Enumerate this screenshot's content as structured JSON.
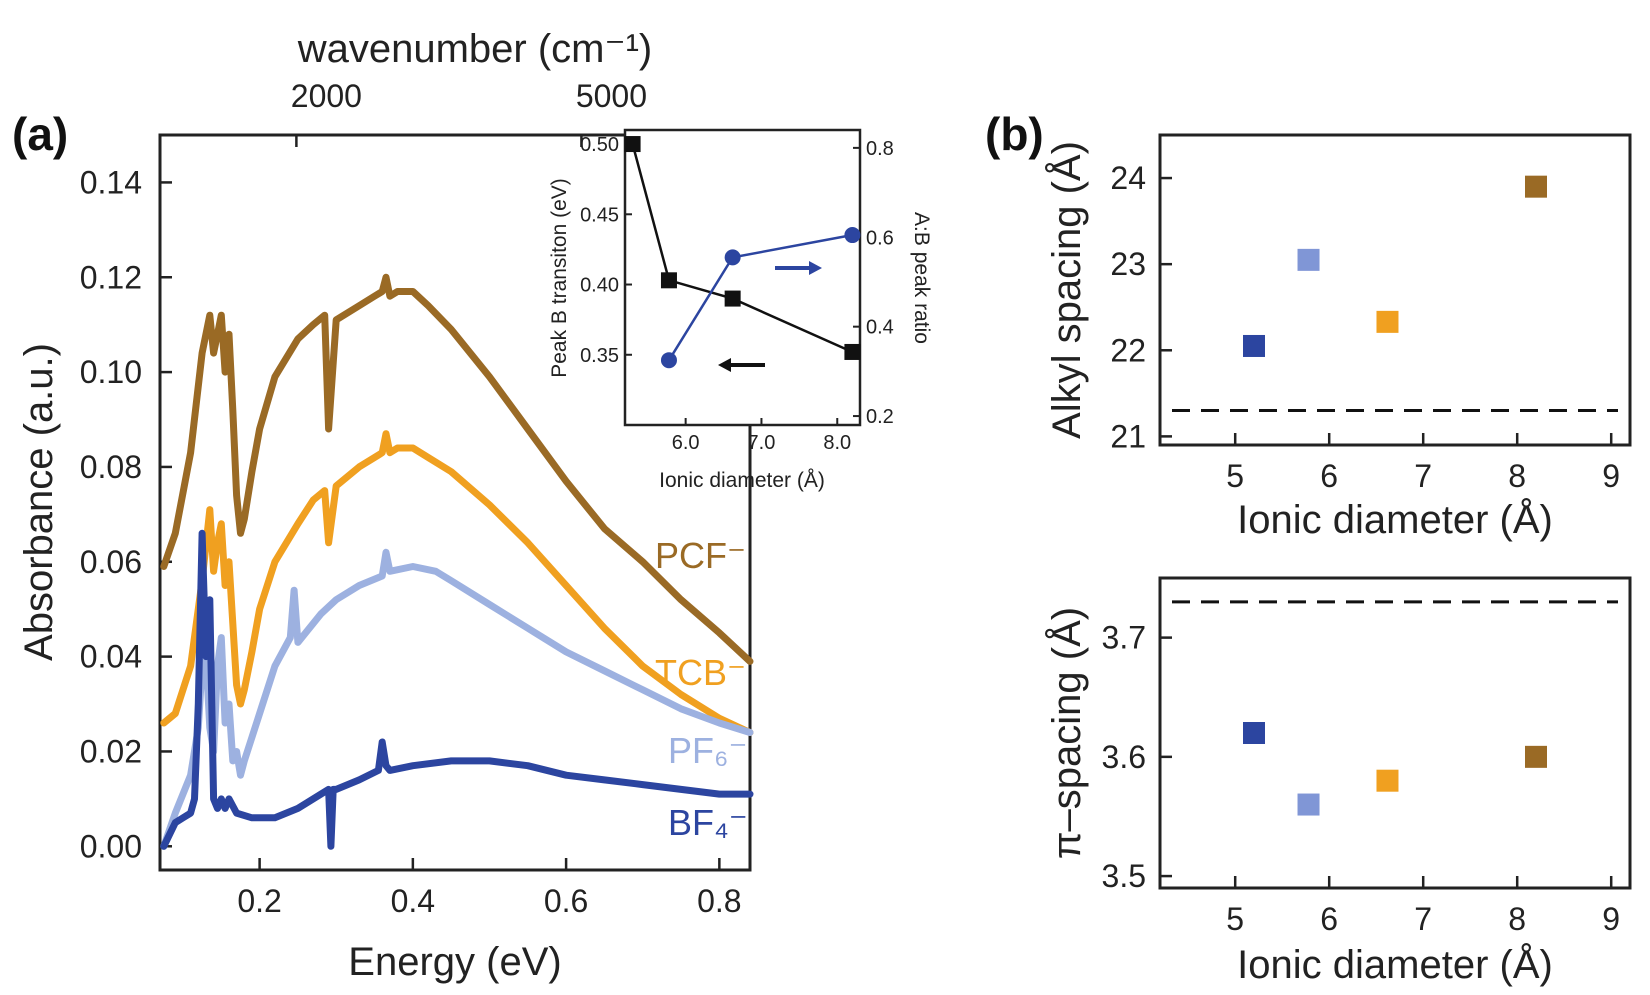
{
  "chart_data": [
    {
      "panel": "(a)",
      "type": "line",
      "xlabel": "Energy (eV)",
      "ylabel": "Absorbance (a.u.)",
      "top_axis_label": "wavenumber (cm⁻¹)",
      "top_ticks": [
        "2000",
        "5000"
      ],
      "top_tick_positions_ev": [
        0.248,
        0.62
      ],
      "xlim": [
        0.07,
        0.84
      ],
      "ylim": [
        -0.005,
        0.15
      ],
      "xticks": [
        "0.2",
        "0.4",
        "0.6",
        "0.8"
      ],
      "yticks": [
        "0.00",
        "0.02",
        "0.04",
        "0.06",
        "0.08",
        "0.10",
        "0.12",
        "0.14"
      ],
      "series": [
        {
          "name": "PCF⁻",
          "color": "#9a6a25",
          "x": [
            0.075,
            0.09,
            0.11,
            0.125,
            0.135,
            0.14,
            0.145,
            0.15,
            0.155,
            0.16,
            0.165,
            0.17,
            0.175,
            0.18,
            0.19,
            0.2,
            0.22,
            0.25,
            0.27,
            0.285,
            0.29,
            0.3,
            0.33,
            0.35,
            0.36,
            0.365,
            0.37,
            0.38,
            0.4,
            0.42,
            0.45,
            0.5,
            0.55,
            0.6,
            0.65,
            0.7,
            0.75,
            0.8,
            0.84
          ],
          "y": [
            0.059,
            0.066,
            0.083,
            0.104,
            0.112,
            0.104,
            0.108,
            0.112,
            0.1,
            0.108,
            0.092,
            0.074,
            0.066,
            0.069,
            0.079,
            0.088,
            0.099,
            0.107,
            0.11,
            0.112,
            0.088,
            0.111,
            0.114,
            0.116,
            0.117,
            0.12,
            0.116,
            0.117,
            0.117,
            0.114,
            0.109,
            0.099,
            0.088,
            0.077,
            0.067,
            0.06,
            0.052,
            0.045,
            0.039
          ]
        },
        {
          "name": "TCB⁻",
          "color": "#f0a020",
          "x": [
            0.075,
            0.09,
            0.11,
            0.125,
            0.135,
            0.14,
            0.145,
            0.15,
            0.155,
            0.16,
            0.165,
            0.17,
            0.175,
            0.18,
            0.19,
            0.2,
            0.22,
            0.25,
            0.27,
            0.285,
            0.29,
            0.3,
            0.33,
            0.35,
            0.36,
            0.365,
            0.37,
            0.38,
            0.4,
            0.42,
            0.45,
            0.5,
            0.55,
            0.6,
            0.65,
            0.7,
            0.75,
            0.8,
            0.84
          ],
          "y": [
            0.026,
            0.028,
            0.038,
            0.056,
            0.071,
            0.058,
            0.064,
            0.068,
            0.055,
            0.06,
            0.047,
            0.034,
            0.03,
            0.033,
            0.041,
            0.05,
            0.06,
            0.068,
            0.073,
            0.075,
            0.064,
            0.076,
            0.08,
            0.082,
            0.083,
            0.087,
            0.083,
            0.084,
            0.084,
            0.082,
            0.079,
            0.072,
            0.064,
            0.055,
            0.046,
            0.038,
            0.032,
            0.027,
            0.024
          ]
        },
        {
          "name": "PF₆⁻",
          "color": "#9db1e0",
          "x": [
            0.075,
            0.09,
            0.11,
            0.12,
            0.125,
            0.13,
            0.135,
            0.14,
            0.145,
            0.15,
            0.155,
            0.16,
            0.165,
            0.17,
            0.175,
            0.18,
            0.2,
            0.22,
            0.24,
            0.245,
            0.25,
            0.28,
            0.3,
            0.33,
            0.36,
            0.365,
            0.37,
            0.4,
            0.43,
            0.45,
            0.5,
            0.55,
            0.6,
            0.65,
            0.7,
            0.75,
            0.8,
            0.84
          ],
          "y": [
            0.0,
            0.007,
            0.015,
            0.025,
            0.038,
            0.04,
            0.025,
            0.02,
            0.038,
            0.044,
            0.026,
            0.03,
            0.018,
            0.02,
            0.015,
            0.018,
            0.028,
            0.038,
            0.044,
            0.054,
            0.043,
            0.049,
            0.052,
            0.055,
            0.057,
            0.062,
            0.058,
            0.059,
            0.058,
            0.056,
            0.051,
            0.046,
            0.041,
            0.037,
            0.033,
            0.029,
            0.026,
            0.024
          ]
        },
        {
          "name": "BF₄⁻",
          "color": "#2c45a0",
          "x": [
            0.075,
            0.09,
            0.1,
            0.11,
            0.115,
            0.12,
            0.125,
            0.13,
            0.135,
            0.14,
            0.145,
            0.15,
            0.155,
            0.16,
            0.17,
            0.19,
            0.22,
            0.25,
            0.28,
            0.29,
            0.293,
            0.296,
            0.3,
            0.33,
            0.355,
            0.36,
            0.365,
            0.37,
            0.4,
            0.45,
            0.5,
            0.55,
            0.6,
            0.65,
            0.7,
            0.75,
            0.8,
            0.84
          ],
          "y": [
            0.0,
            0.005,
            0.006,
            0.007,
            0.01,
            0.03,
            0.066,
            0.04,
            0.052,
            0.01,
            0.008,
            0.01,
            0.008,
            0.01,
            0.007,
            0.006,
            0.006,
            0.008,
            0.011,
            0.012,
            0.0,
            0.012,
            0.012,
            0.014,
            0.016,
            0.022,
            0.017,
            0.016,
            0.017,
            0.018,
            0.018,
            0.017,
            0.015,
            0.014,
            0.013,
            0.012,
            0.011,
            0.011
          ]
        }
      ],
      "inset": {
        "type": "line",
        "xlabel": "Ionic diameter (Å)",
        "ylabel_left": "Peak B transiton (eV)",
        "ylabel_right": "A:B peak ratio",
        "xlim": [
          5.2,
          8.3
        ],
        "ylim_left": [
          0.3,
          0.51
        ],
        "ylim_right": [
          0.18,
          0.84
        ],
        "xticks": [
          "6.0",
          "7.0",
          "8.0"
        ],
        "yticks_left": [
          "0.35",
          "0.40",
          "0.45",
          "0.50"
        ],
        "yticks_right": [
          "0.2",
          "0.4",
          "0.6",
          "0.8"
        ],
        "series": [
          {
            "axis": "left",
            "color": "#111111",
            "marker": "square",
            "x": [
              5.3,
              5.78,
              6.62,
              8.2
            ],
            "y": [
              0.5,
              0.403,
              0.39,
              0.352
            ]
          },
          {
            "axis": "right",
            "color": "#2c45a0",
            "marker": "circle",
            "x": [
              5.78,
              6.62,
              8.2
            ],
            "y": [
              0.325,
              0.555,
              0.605
            ]
          }
        ]
      }
    },
    {
      "panel": "(b)",
      "type": "scatter",
      "xlabel": "Ionic diameter (Å)",
      "ylabel": "Alkyl spacing (Å)",
      "xlim": [
        4.2,
        9.2
      ],
      "ylim": [
        20.9,
        24.5
      ],
      "xticks": [
        "5",
        "6",
        "7",
        "8",
        "9"
      ],
      "yticks": [
        "21",
        "22",
        "23",
        "24"
      ],
      "reference_line": 21.3,
      "points": [
        {
          "x": 5.2,
          "y": 22.05,
          "color": "#2c45a0"
        },
        {
          "x": 5.78,
          "y": 23.05,
          "color": "#8096d6"
        },
        {
          "x": 6.62,
          "y": 22.33,
          "color": "#f0a020"
        },
        {
          "x": 8.2,
          "y": 23.9,
          "color": "#9a6a25"
        }
      ]
    },
    {
      "panel": "(b)",
      "type": "scatter",
      "xlabel": "Ionic diameter (Å)",
      "ylabel": "π–spacing (Å)",
      "xlim": [
        4.2,
        9.2
      ],
      "ylim": [
        3.49,
        3.75
      ],
      "xticks": [
        "5",
        "6",
        "7",
        "8",
        "9"
      ],
      "yticks": [
        "3.5",
        "3.6",
        "3.7"
      ],
      "reference_line": 3.73,
      "points": [
        {
          "x": 5.2,
          "y": 3.62,
          "color": "#2c45a0"
        },
        {
          "x": 5.78,
          "y": 3.56,
          "color": "#8096d6"
        },
        {
          "x": 6.62,
          "y": 3.58,
          "color": "#f0a020"
        },
        {
          "x": 8.2,
          "y": 3.6,
          "color": "#9a6a25"
        }
      ]
    }
  ]
}
